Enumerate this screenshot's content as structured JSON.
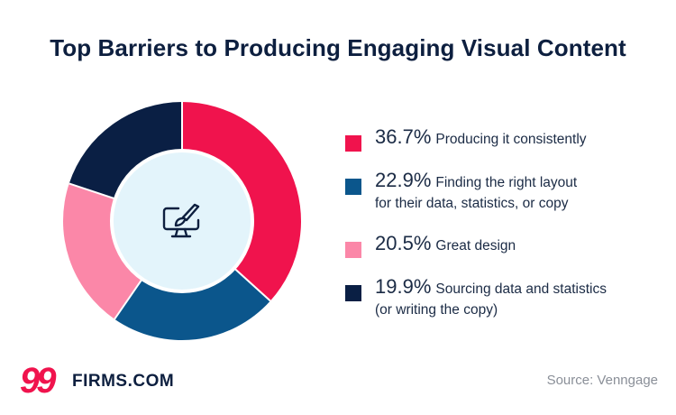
{
  "title": "Top Barriers to Producing Engaging Visual Content",
  "chart_data": {
    "type": "pie",
    "title": "Top Barriers to Producing Engaging Visual Content",
    "series": [
      {
        "pct": "36.7%",
        "value": 36.7,
        "label": "Producing it consistently",
        "label2": "",
        "color": "#f0134d"
      },
      {
        "pct": "22.9%",
        "value": 22.9,
        "label": "Finding the right layout",
        "label2": "for their data, statistics, or copy",
        "color": "#0b568c"
      },
      {
        "pct": "20.5%",
        "value": 20.5,
        "label": "Great design",
        "label2": "",
        "color": "#fb87a8"
      },
      {
        "pct": "19.9%",
        "value": 19.9,
        "label": "Sourcing data and statistics",
        "label2": "(or writing the copy)",
        "color": "#0a1f44"
      }
    ],
    "center_icon": "design-monitor-icon",
    "hole_color": "#e3f4fb"
  },
  "logo": {
    "mark": "99",
    "text": "FIRMS.COM"
  },
  "source": "Source: Venngage"
}
